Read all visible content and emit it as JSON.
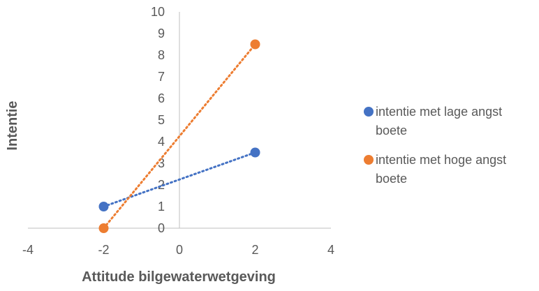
{
  "chart_data": {
    "type": "scatter",
    "title": "",
    "xlabel": "Attitude bilgewaterwetgeving",
    "ylabel": "Intentie",
    "xlim": [
      -4,
      4
    ],
    "ylim": [
      0,
      10
    ],
    "x_ticks": [
      "-4",
      "-2",
      "0",
      "2",
      "4"
    ],
    "y_ticks": [
      "0",
      "1",
      "2",
      "3",
      "4",
      "5",
      "6",
      "7",
      "8",
      "9",
      "10"
    ],
    "grid": false,
    "trendline": "linear, dotted",
    "legend_position": "right",
    "series": [
      {
        "name": "intentie met lage angst boete",
        "name_lines": [
          "intentie met lage angst",
          "boete"
        ],
        "color": "#4472C4",
        "points": [
          {
            "x": -2,
            "y": 1
          },
          {
            "x": 2,
            "y": 3.5
          }
        ]
      },
      {
        "name": "intentie met hoge angst boete",
        "name_lines": [
          "intentie met hoge angst",
          "boete"
        ],
        "color": "#ED7D31",
        "points": [
          {
            "x": -2,
            "y": 0
          },
          {
            "x": 2,
            "y": 8.5
          }
        ]
      }
    ]
  }
}
